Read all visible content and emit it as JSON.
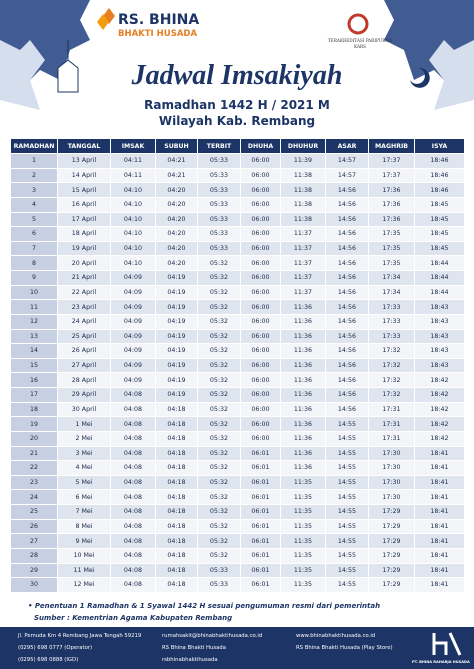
{
  "header": {
    "logo_line1": "RS. BHINA",
    "logo_line2": "BHAKTI HUSADA",
    "accreditation_line1": "TERAKREDITASI PARIPURNA",
    "accreditation_line2": "KARS"
  },
  "title": "Jadwal Imsakiyah",
  "subtitle": "Ramadhan 1442 H / 2021 M",
  "location": "Wilayah Kab. Rembang",
  "table": {
    "columns": [
      "RAMADHAN",
      "TANGGAL",
      "IMSAK",
      "SUBUH",
      "TERBIT",
      "DHUHA",
      "DHUHUR",
      "ASAR",
      "MAGHRIB",
      "ISYA"
    ],
    "rows": [
      [
        "1",
        "13 April",
        "04:11",
        "04:21",
        "05:33",
        "06:00",
        "11:39",
        "14:57",
        "17:37",
        "18:46"
      ],
      [
        "2",
        "14 April",
        "04:11",
        "04:21",
        "05:33",
        "06:00",
        "11:38",
        "14:57",
        "17:37",
        "18:46"
      ],
      [
        "3",
        "15 April",
        "04:10",
        "04:20",
        "05:33",
        "06:00",
        "11:38",
        "14:56",
        "17:36",
        "18:46"
      ],
      [
        "4",
        "16 April",
        "04:10",
        "04:20",
        "05:33",
        "06:00",
        "11:38",
        "14:56",
        "17:36",
        "18:45"
      ],
      [
        "5",
        "17 April",
        "04:10",
        "04:20",
        "05:33",
        "06:00",
        "11:38",
        "14:56",
        "17:36",
        "18:45"
      ],
      [
        "6",
        "18 April",
        "04:10",
        "04:20",
        "05:33",
        "06:00",
        "11:37",
        "14:56",
        "17:35",
        "18:45"
      ],
      [
        "7",
        "19 April",
        "04:10",
        "04:20",
        "05:33",
        "06:00",
        "11:37",
        "14:56",
        "17:35",
        "18:45"
      ],
      [
        "8",
        "20 April",
        "04:10",
        "04:20",
        "05:32",
        "06:00",
        "11:37",
        "14:56",
        "17:35",
        "18:44"
      ],
      [
        "9",
        "21 April",
        "04:09",
        "04:19",
        "05:32",
        "06:00",
        "11:37",
        "14:56",
        "17:34",
        "18:44"
      ],
      [
        "10",
        "22 April",
        "04:09",
        "04:19",
        "05:32",
        "06:00",
        "11:37",
        "14:56",
        "17:34",
        "18:44"
      ],
      [
        "11",
        "23 April",
        "04:09",
        "04:19",
        "05:32",
        "06:00",
        "11:36",
        "14:56",
        "17:33",
        "18:43"
      ],
      [
        "12",
        "24 April",
        "04:09",
        "04:19",
        "05:32",
        "06:00",
        "11:36",
        "14:56",
        "17:33",
        "18:43"
      ],
      [
        "13",
        "25 April",
        "04:09",
        "04:19",
        "05:32",
        "06:00",
        "11:36",
        "14:56",
        "17:33",
        "18:43"
      ],
      [
        "14",
        "26 April",
        "04:09",
        "04:19",
        "05:32",
        "06:00",
        "11:36",
        "14:56",
        "17:32",
        "18:43"
      ],
      [
        "15",
        "27 April",
        "04:09",
        "04:19",
        "05:32",
        "06:00",
        "11:36",
        "14:56",
        "17:32",
        "18:43"
      ],
      [
        "16",
        "28 April",
        "04:09",
        "04:19",
        "05:32",
        "06:00",
        "11:36",
        "14:56",
        "17:32",
        "18:42"
      ],
      [
        "17",
        "29 April",
        "04:08",
        "04:19",
        "05:32",
        "06:00",
        "11:36",
        "14:56",
        "17:32",
        "18:42"
      ],
      [
        "18",
        "30 April",
        "04:08",
        "04:18",
        "05:32",
        "06:00",
        "11:36",
        "14:56",
        "17:31",
        "18:42"
      ],
      [
        "19",
        "1 Mei",
        "04:08",
        "04:18",
        "05:32",
        "06:00",
        "11:36",
        "14:55",
        "17:31",
        "18:42"
      ],
      [
        "20",
        "2 Mei",
        "04:08",
        "04:18",
        "05:32",
        "06:00",
        "11:36",
        "14:55",
        "17:31",
        "18:42"
      ],
      [
        "21",
        "3 Mei",
        "04:08",
        "04:18",
        "05:32",
        "06:01",
        "11:36",
        "14:55",
        "17:30",
        "18:41"
      ],
      [
        "22",
        "4 Mei",
        "04:08",
        "04:18",
        "05:32",
        "06:01",
        "11:36",
        "14:55",
        "17:30",
        "18:41"
      ],
      [
        "23",
        "5 Mei",
        "04:08",
        "04:18",
        "05:32",
        "06:01",
        "11:35",
        "14:55",
        "17:30",
        "18:41"
      ],
      [
        "24",
        "6 Mei",
        "04:08",
        "04:18",
        "05:32",
        "06:01",
        "11:35",
        "14:55",
        "17:30",
        "18:41"
      ],
      [
        "25",
        "7 Mei",
        "04:08",
        "04:18",
        "05:32",
        "06:01",
        "11:35",
        "14:55",
        "17:29",
        "18:41"
      ],
      [
        "26",
        "8 Mei",
        "04:08",
        "04:18",
        "05:32",
        "06:01",
        "11:35",
        "14:55",
        "17:29",
        "18:41"
      ],
      [
        "27",
        "9 Mei",
        "04:08",
        "04:18",
        "05:32",
        "06:01",
        "11:35",
        "14:55",
        "17:29",
        "18:41"
      ],
      [
        "28",
        "10 Mei",
        "04:08",
        "04:18",
        "05:32",
        "06:01",
        "11:35",
        "14:55",
        "17:29",
        "18:41"
      ],
      [
        "29",
        "11 Mei",
        "04:08",
        "04:18",
        "05:33",
        "06:01",
        "11:35",
        "14:55",
        "17:29",
        "18:41"
      ],
      [
        "30",
        "12 Mei",
        "04:08",
        "04:18",
        "05:33",
        "06:01",
        "11:35",
        "14:55",
        "17:29",
        "18:41"
      ]
    ]
  },
  "notes": [
    "Penentuan 1 Ramadhan & 1 Syawal 1442 H sesuai pengumuman resmi dari pemerintah",
    "Sumber : Kementrian Agama Kabupaten Rembang"
  ],
  "footer": {
    "address": "Jl. Pemuda Km 4 Rembang Jawa Tengah 59219",
    "phone_operator": "(0295) 698 0777 (Operator)",
    "phone_igd": "(0295) 698 0888 (IGD)",
    "email": "rumahsakit@bhinabhaktihusada.co.id",
    "facebook": "RS Bhina Bhakti Husada",
    "instagram": "rsbhinabhaktihusada",
    "website": "www.bhinabhaktihusada.co.id",
    "playstore": "RS Bhina Bhakti Husada (Play Store)",
    "company": "PT. BHINA RAHARJA HUSADA"
  }
}
